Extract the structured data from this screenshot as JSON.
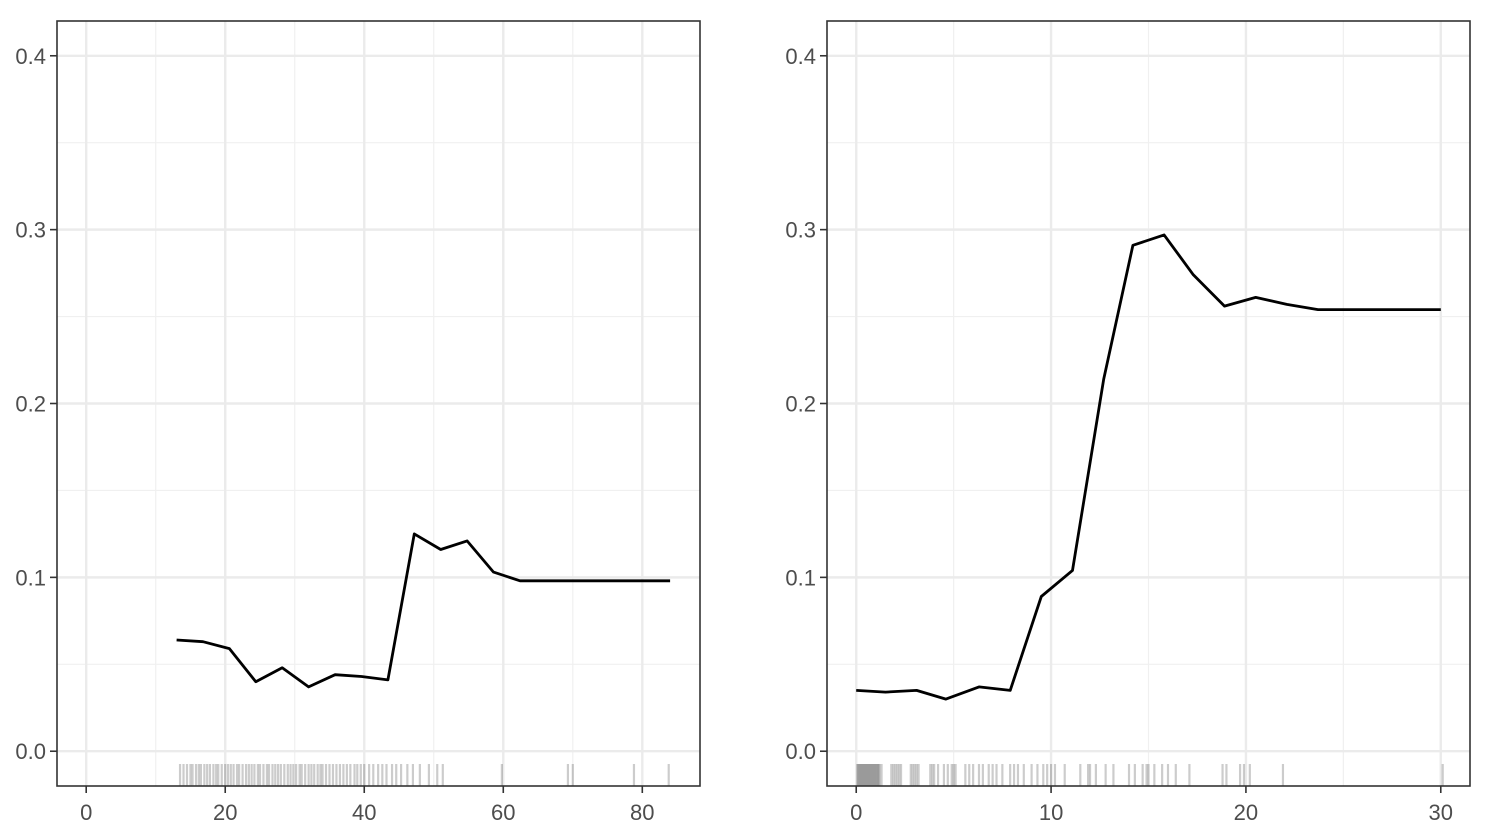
{
  "chart_data": [
    {
      "type": "line",
      "title": "",
      "xlabel": "",
      "ylabel": "",
      "xlim": [
        -4.2,
        88.3
      ],
      "ylim": [
        -0.02,
        0.42
      ],
      "x_ticks": [
        0,
        20,
        40,
        60,
        80
      ],
      "y_ticks": [
        0.0,
        0.1,
        0.2,
        0.3,
        0.4
      ],
      "x_tick_labels": [
        "0",
        "20",
        "40",
        "60",
        "80"
      ],
      "y_tick_labels": [
        "0.0",
        "0.1",
        "0.2",
        "0.3",
        "0.4"
      ],
      "grid": true,
      "line_color": "#000000",
      "series": [
        {
          "x": [
            13,
            16.8,
            20.6,
            24.4,
            28.2,
            32,
            35.8,
            39.6,
            43.4,
            47.2,
            51,
            54.8,
            58.6,
            62.4,
            66.2,
            70,
            73.8,
            77.6,
            81.4,
            84
          ],
          "values": [
            0.064,
            0.063,
            0.059,
            0.04,
            0.048,
            0.037,
            0.044,
            0.043,
            0.041,
            0.125,
            0.116,
            0.121,
            0.103,
            0.098,
            0.098,
            0.098,
            0.098,
            0.098,
            0.098,
            0.098
          ]
        }
      ],
      "rug": [
        13.5,
        14,
        14.5,
        15,
        15.3,
        15.8,
        16.2,
        16.5,
        17,
        17.4,
        17.8,
        18.3,
        18.7,
        19,
        19.5,
        20,
        20.4,
        20.8,
        21.2,
        21.7,
        22,
        22.5,
        23,
        23.4,
        23.8,
        24.2,
        24.7,
        25,
        25.5,
        26,
        26.3,
        26.8,
        27.2,
        27.6,
        28,
        28.5,
        29,
        29.4,
        29.8,
        30.2,
        30.7,
        31,
        31.5,
        32,
        32.4,
        32.8,
        33.3,
        33.7,
        34,
        34.5,
        35,
        35.5,
        36,
        36.5,
        37,
        37.5,
        38,
        38.6,
        39,
        39.5,
        40,
        40.7,
        41.3,
        42,
        42.6,
        43.2,
        44,
        44.6,
        45.3,
        46.2,
        47,
        48,
        49.3,
        50.5,
        51.3,
        59.8,
        69.3,
        70,
        78.8,
        83.8
      ]
    },
    {
      "type": "line",
      "title": "",
      "xlabel": "",
      "ylabel": "",
      "xlim": [
        -1.5,
        31.5
      ],
      "ylim": [
        -0.02,
        0.42
      ],
      "x_ticks": [
        0,
        10,
        20,
        30
      ],
      "y_ticks": [
        0.0,
        0.1,
        0.2,
        0.3,
        0.4
      ],
      "x_tick_labels": [
        "0",
        "10",
        "20",
        "30"
      ],
      "y_tick_labels": [
        "0.0",
        "0.1",
        "0.2",
        "0.3",
        "0.4"
      ],
      "grid": true,
      "line_color": "#000000",
      "series": [
        {
          "x": [
            0,
            1.5,
            3.1,
            4.6,
            6.3,
            7.9,
            9.5,
            11.1,
            12.7,
            14.2,
            15.8,
            17.3,
            18.9,
            20.5,
            22.1,
            23.7,
            25.3,
            26.8,
            28.4,
            30
          ],
          "values": [
            0.035,
            0.034,
            0.035,
            0.03,
            0.037,
            0.035,
            0.089,
            0.104,
            0.214,
            0.291,
            0.297,
            0.274,
            0.256,
            0.261,
            0.257,
            0.254,
            0.254,
            0.254,
            0.254,
            0.254
          ]
        }
      ],
      "rug": [
        0.05,
        0.1,
        0.15,
        0.2,
        0.25,
        0.3,
        0.35,
        0.4,
        0.45,
        0.5,
        0.55,
        0.6,
        0.65,
        0.7,
        0.75,
        0.8,
        0.85,
        0.9,
        0.95,
        1.0,
        1.05,
        1.1,
        1.15,
        1.2,
        1.3,
        1.8,
        1.9,
        2.0,
        2.1,
        2.2,
        2.3,
        2.8,
        2.9,
        3.0,
        3.1,
        3.2,
        3.8,
        3.9,
        4.0,
        4.2,
        4.5,
        4.7,
        4.9,
        5.0,
        5.1,
        5.6,
        5.8,
        6.0,
        6.3,
        6.5,
        6.8,
        7.0,
        7.2,
        7.5,
        7.9,
        8.1,
        8.3,
        8.6,
        9.0,
        9.3,
        9.6,
        9.8,
        10.0,
        10.2,
        10.7,
        11.5,
        11.9,
        12.0,
        12.3,
        12.8,
        13.2,
        14.0,
        14.3,
        14.7,
        14.9,
        15.0,
        15.3,
        15.7,
        16.0,
        16.4,
        17.1,
        18.8,
        19.0,
        19.7,
        19.9,
        20.2,
        21.9,
        30.1
      ]
    }
  ]
}
